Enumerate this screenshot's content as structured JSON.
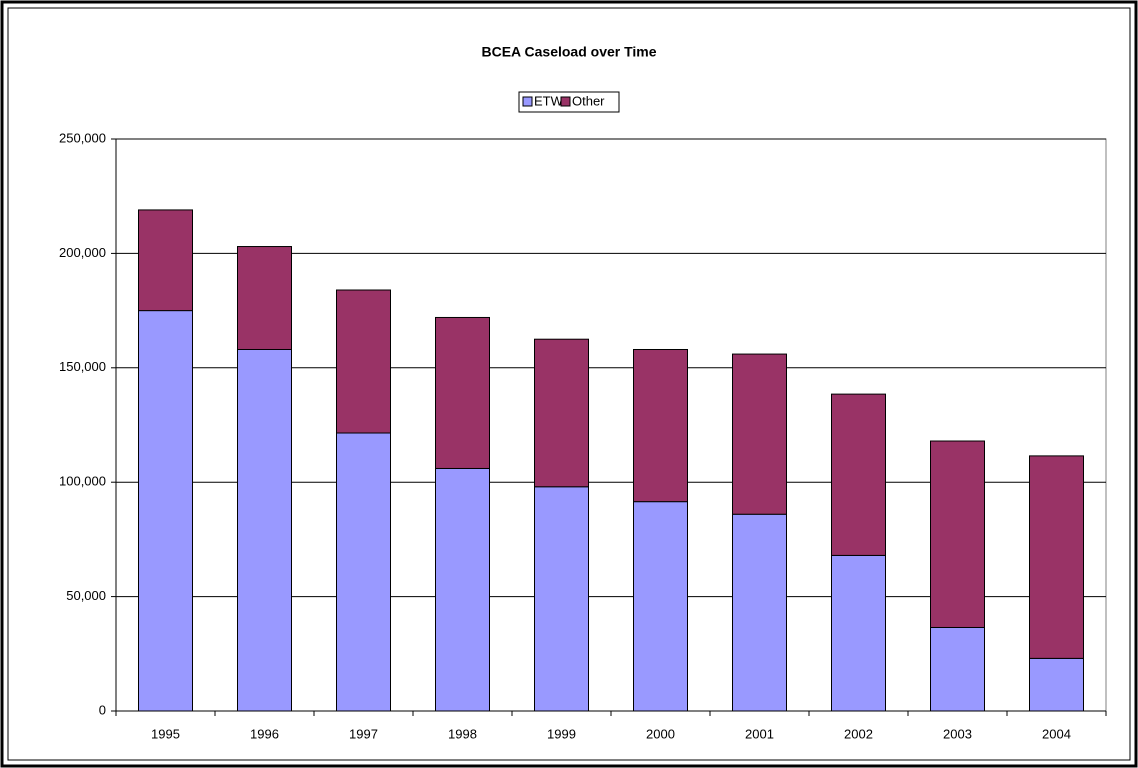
{
  "chart_data": {
    "type": "stacked_bar",
    "title": "BCEA Caseload over Time",
    "categories": [
      "1995",
      "1996",
      "1997",
      "1998",
      "1999",
      "2000",
      "2001",
      "2002",
      "2003",
      "2004"
    ],
    "series": [
      {
        "name": "ETW",
        "color": "#9999ff",
        "values": [
          175000,
          158000,
          121500,
          106000,
          98000,
          91500,
          86000,
          68000,
          36500,
          23000
        ]
      },
      {
        "name": "Other",
        "color": "#993366",
        "values": [
          44000,
          45000,
          62500,
          66000,
          64500,
          66500,
          70000,
          70500,
          81500,
          88500
        ]
      }
    ],
    "ylim": [
      0,
      250000
    ],
    "yticks": [
      0,
      {
        "value": 50000,
        "label": "50,000"
      },
      {
        "value": 100000,
        "label": "100,000"
      },
      {
        "value": 150000,
        "label": "150,000"
      },
      {
        "value": 200000,
        "label": "200,000"
      },
      {
        "value": 250000,
        "label": "250,000"
      }
    ],
    "grid": true,
    "legend": "top"
  }
}
